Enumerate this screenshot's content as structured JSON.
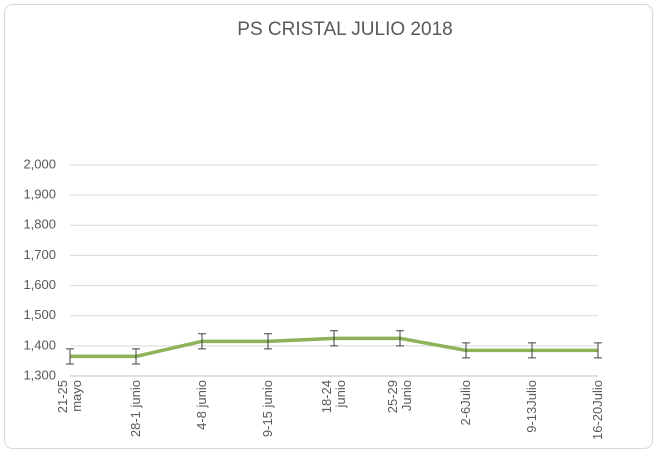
{
  "chart_data": {
    "type": "line",
    "title": "PS CRISTAL JULIO 2018",
    "categories": [
      "21-25\nmayo",
      "28-1 junio",
      "4-8 junio",
      "9-15 junio",
      "18-24\njunio",
      "25-29\nJunio",
      "2-6Julio",
      "9-13Julio",
      "16-20Julio"
    ],
    "series": [
      {
        "name": "PS CRISTAL",
        "color": "#8db257",
        "values": [
          1365,
          1365,
          1415,
          1415,
          1425,
          1425,
          1385,
          1385,
          1385
        ],
        "errors": [
          25,
          25,
          25,
          25,
          25,
          25,
          25,
          25,
          25
        ]
      }
    ],
    "ylim": [
      1300,
      2000
    ],
    "yticks": [
      {
        "value": 1300,
        "label": "1,300"
      },
      {
        "value": 1400,
        "label": "1,400"
      },
      {
        "value": 1500,
        "label": "1,500"
      },
      {
        "value": 1600,
        "label": "1,600"
      },
      {
        "value": 1700,
        "label": "1,700"
      },
      {
        "value": 1800,
        "label": "1,800"
      },
      {
        "value": 1900,
        "label": "1,900"
      },
      {
        "value": 2000,
        "label": "2,000"
      }
    ],
    "grid": true
  }
}
